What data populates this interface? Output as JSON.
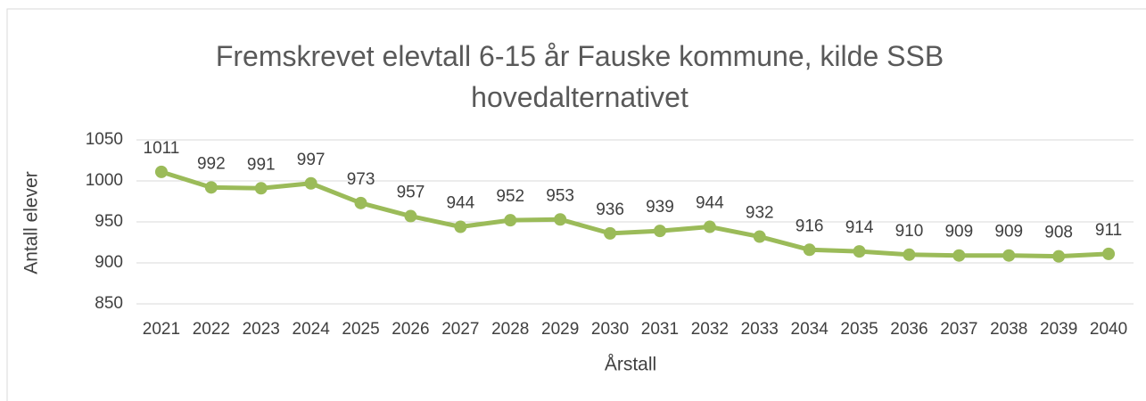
{
  "chart_data": {
    "type": "line",
    "title": "Fremskrevet elevtall 6-15 år Fauske kommune, kilde SSB hovedalternativet",
    "x_label": "Årstall",
    "y_label": "Antall elever",
    "categories": [
      "2021",
      "2022",
      "2023",
      "2024",
      "2025",
      "2026",
      "2027",
      "2028",
      "2029",
      "2030",
      "2031",
      "2032",
      "2033",
      "2034",
      "2035",
      "2036",
      "2037",
      "2038",
      "2039",
      "2040"
    ],
    "series": [
      {
        "name": "Antall elever",
        "color": "#9bbb59",
        "values": [
          1011,
          992,
          991,
          997,
          973,
          957,
          944,
          952,
          953,
          936,
          939,
          944,
          932,
          916,
          914,
          910,
          909,
          909,
          908,
          911
        ]
      }
    ],
    "ylim": [
      850,
      1050
    ],
    "yticks": [
      850,
      900,
      950,
      1000,
      1050
    ],
    "grid": true
  }
}
